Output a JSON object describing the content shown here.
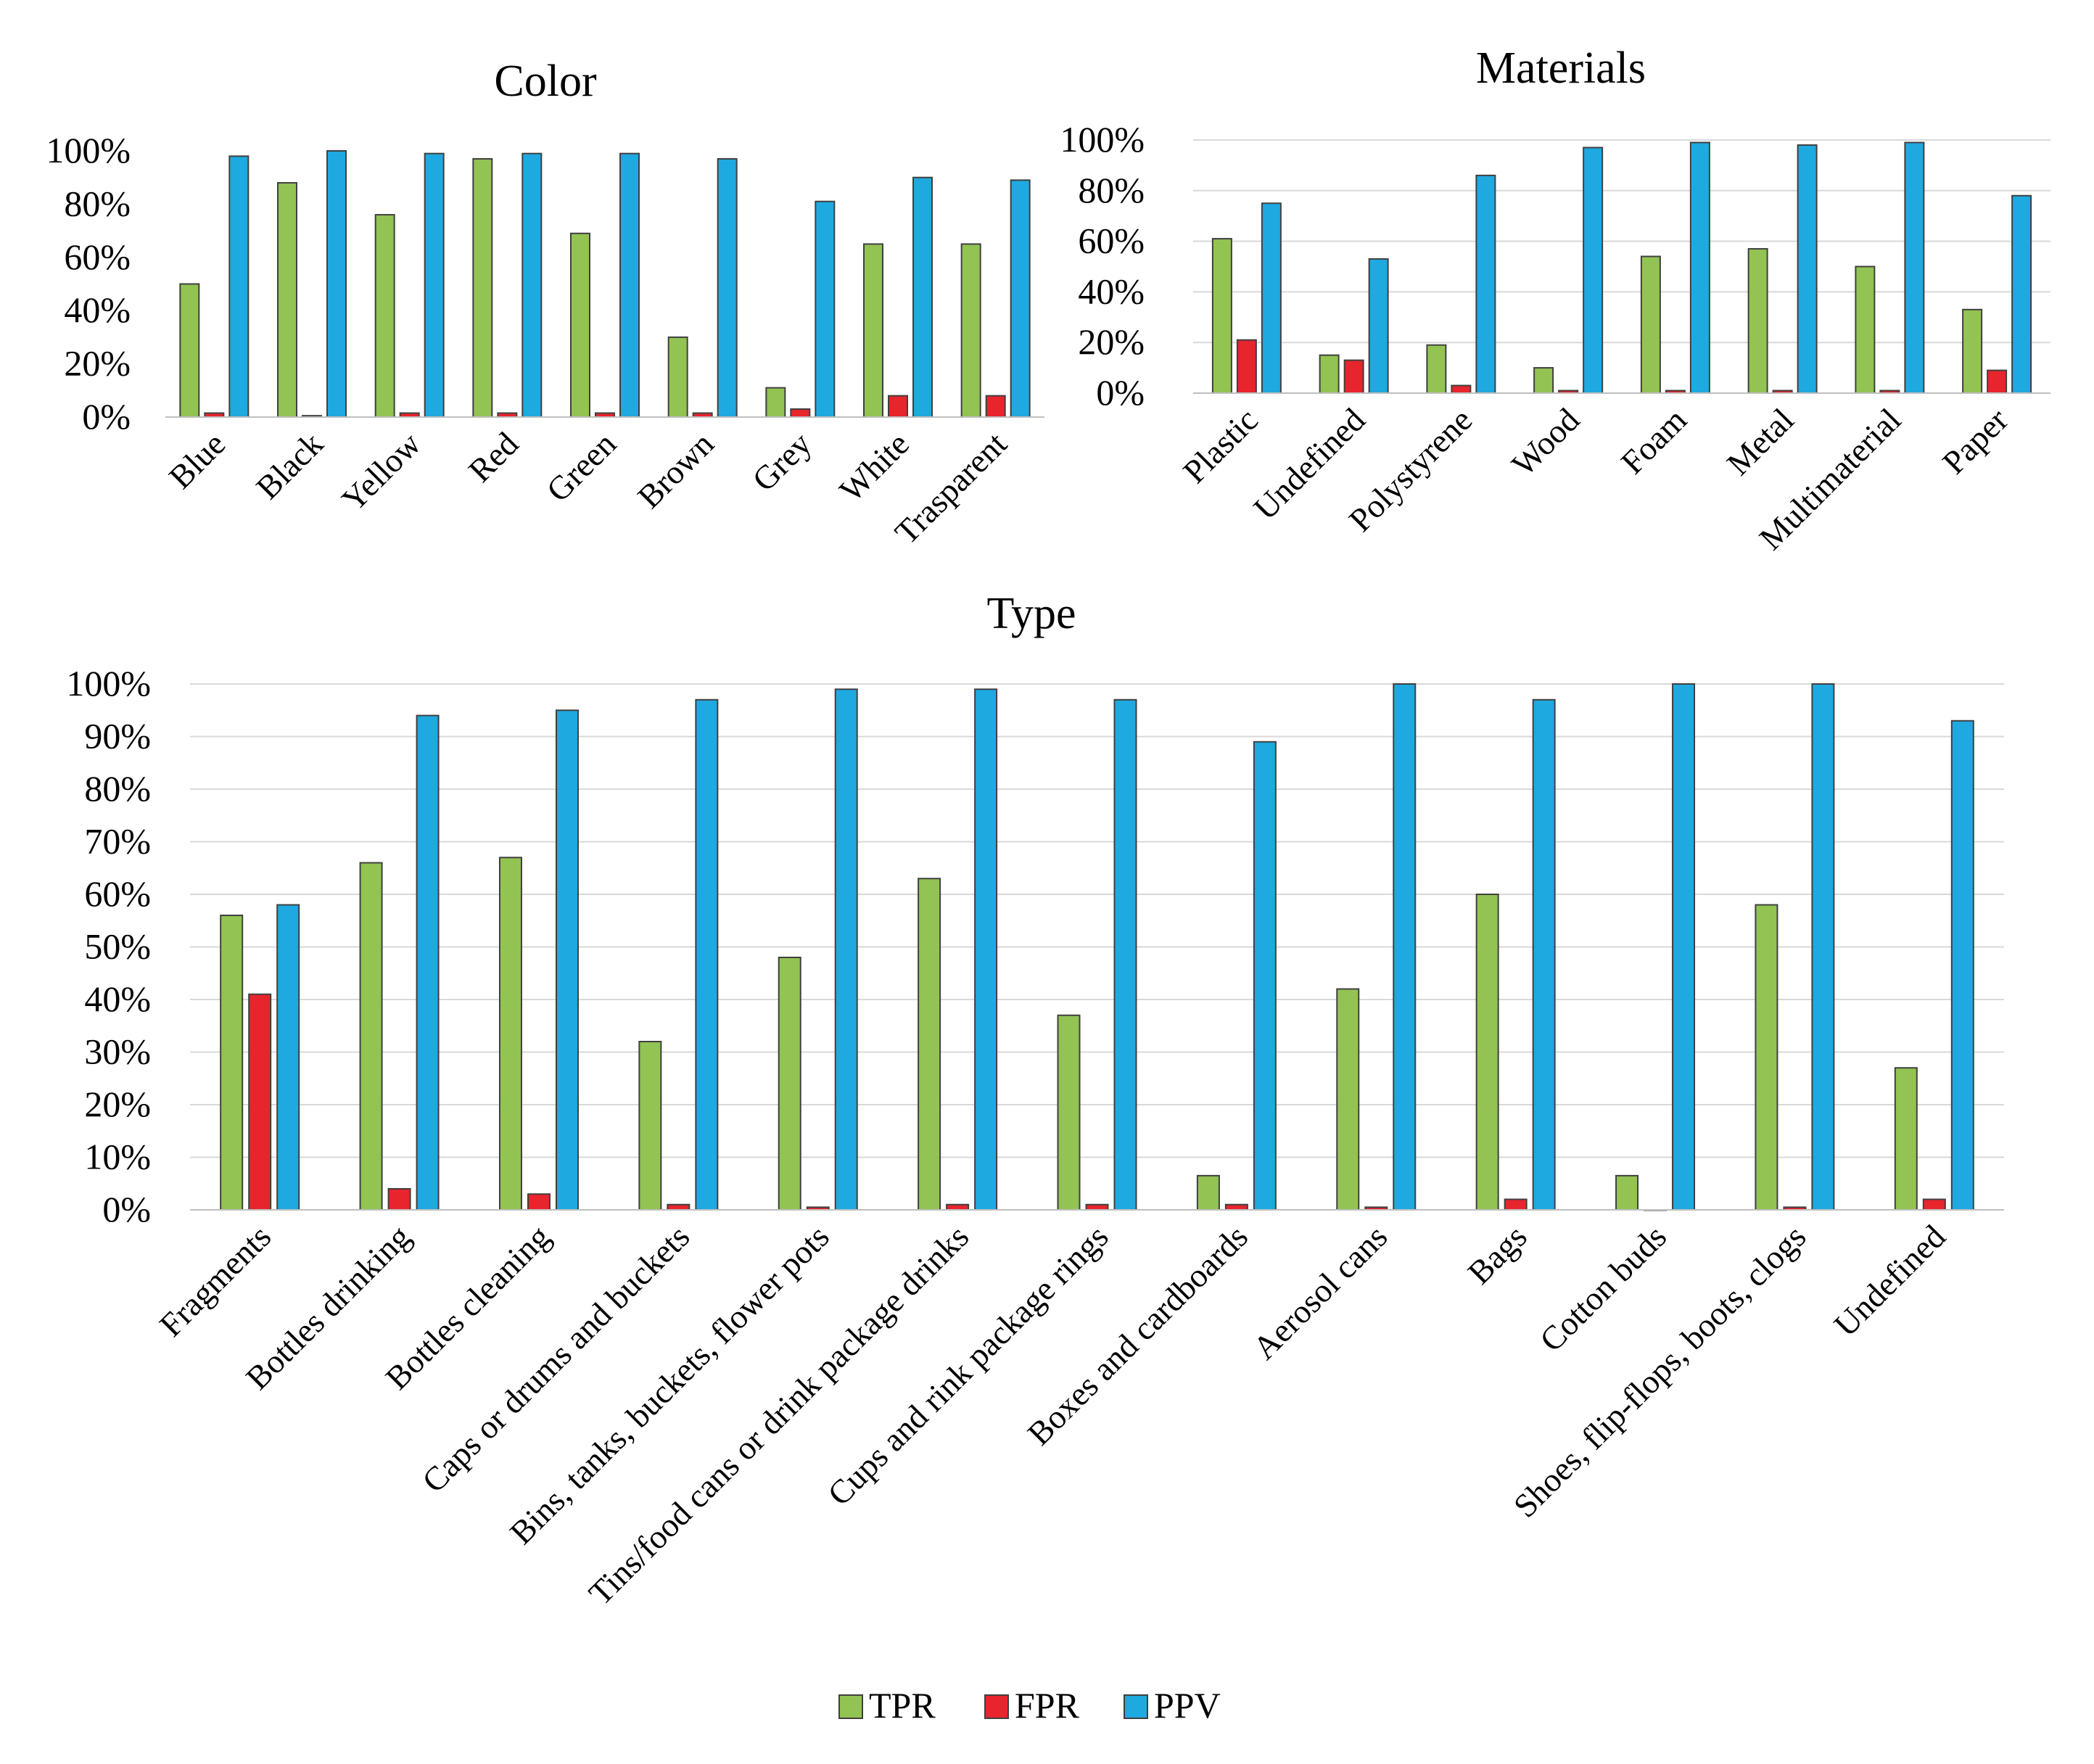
{
  "colors": {
    "TPR": "#92c353",
    "FPR": "#e8242c",
    "PPV": "#1fa9e1"
  },
  "legend": [
    "TPR",
    "FPR",
    "PPV"
  ],
  "chart_data": [
    {
      "id": "color",
      "type": "bar",
      "title": "Color",
      "categories": [
        "Blue",
        "Black",
        "Yellow",
        "Red",
        "Green",
        "Brown",
        "Grey",
        "White",
        "Trasparent"
      ],
      "series": [
        {
          "name": "TPR",
          "values": [
            50,
            88,
            76,
            97,
            69,
            30,
            11,
            65,
            65
          ]
        },
        {
          "name": "FPR",
          "values": [
            1.5,
            0.5,
            1.5,
            1.5,
            1.5,
            1.5,
            3,
            8,
            8
          ]
        },
        {
          "name": "PPV",
          "values": [
            98,
            100,
            99,
            99,
            99,
            97,
            81,
            90,
            89
          ]
        }
      ],
      "ylim": [
        0,
        100
      ],
      "yticks": [
        "0%",
        "20%",
        "40%",
        "60%",
        "80%",
        "100%"
      ],
      "grid": false
    },
    {
      "id": "materials",
      "type": "bar",
      "title": "Materials",
      "categories": [
        "Plastic",
        "Undefined",
        "Polystyrene",
        "Wood",
        "Foam",
        "Metal",
        "Multimaterial",
        "Paper"
      ],
      "series": [
        {
          "name": "TPR",
          "values": [
            61,
            15,
            19,
            10,
            54,
            57,
            50,
            33
          ]
        },
        {
          "name": "FPR",
          "values": [
            21,
            13,
            3,
            1,
            1,
            1,
            1,
            9
          ]
        },
        {
          "name": "PPV",
          "values": [
            75,
            53,
            86,
            97,
            99,
            98,
            99,
            78
          ]
        }
      ],
      "ylim": [
        0,
        100
      ],
      "yticks": [
        "0%",
        "20%",
        "40%",
        "60%",
        "80%",
        "100%"
      ],
      "grid": true
    },
    {
      "id": "type",
      "type": "bar",
      "title": "Type",
      "categories": [
        "Fragments",
        "Bottles drinking",
        "Bottles cleaning",
        "Caps or drums and buckets",
        "Bins, tanks, buckets, flower pots",
        "Tins/food cans or drink package drinks",
        "Cups and rink package rings",
        "Boxes and cardboards",
        "Aerosol cans",
        "Bags",
        "Cotton buds",
        "Shoes, flip-flops, boots, clogs",
        "Undefined"
      ],
      "series": [
        {
          "name": "TPR",
          "values": [
            56,
            66,
            67,
            32,
            48,
            63,
            37,
            6.5,
            42,
            60,
            6.5,
            58,
            27
          ]
        },
        {
          "name": "FPR",
          "values": [
            41,
            4,
            3,
            1,
            0.5,
            1,
            1,
            1,
            0.5,
            2,
            0,
            0.5,
            2
          ]
        },
        {
          "name": "PPV",
          "values": [
            58,
            94,
            95,
            97,
            99,
            99,
            97,
            89,
            100,
            97,
            100,
            100,
            93
          ]
        }
      ],
      "ylim": [
        0,
        100
      ],
      "yticks": [
        "0%",
        "10%",
        "20%",
        "30%",
        "40%",
        "50%",
        "60%",
        "70%",
        "80%",
        "90%",
        "100%"
      ],
      "grid": true
    }
  ]
}
